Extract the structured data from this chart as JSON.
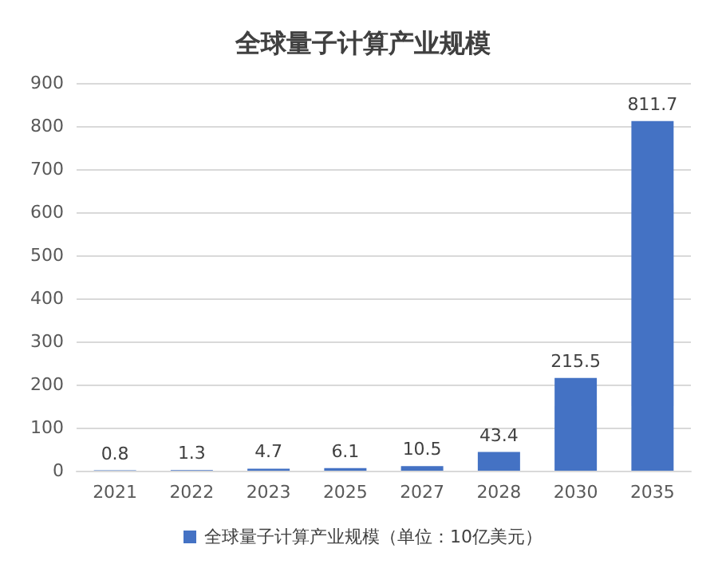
{
  "chart_data": {
    "type": "bar",
    "title": "全球量子计算产业规模",
    "categories": [
      "2021",
      "2022",
      "2023",
      "2025",
      "2027",
      "2028",
      "2030",
      "2035"
    ],
    "series": [
      {
        "name": "全球量子计算产业规模（单位：10亿美元）",
        "color": "#4472c4",
        "values": [
          0.8,
          1.3,
          4.7,
          6.1,
          10.5,
          43.4,
          215.5,
          811.7
        ]
      }
    ],
    "ylim": [
      0,
      900
    ],
    "yticks": [
      0,
      100,
      200,
      300,
      400,
      500,
      600,
      700,
      800,
      900
    ],
    "grid": "y",
    "legend": "bottom",
    "data_labels": true
  }
}
